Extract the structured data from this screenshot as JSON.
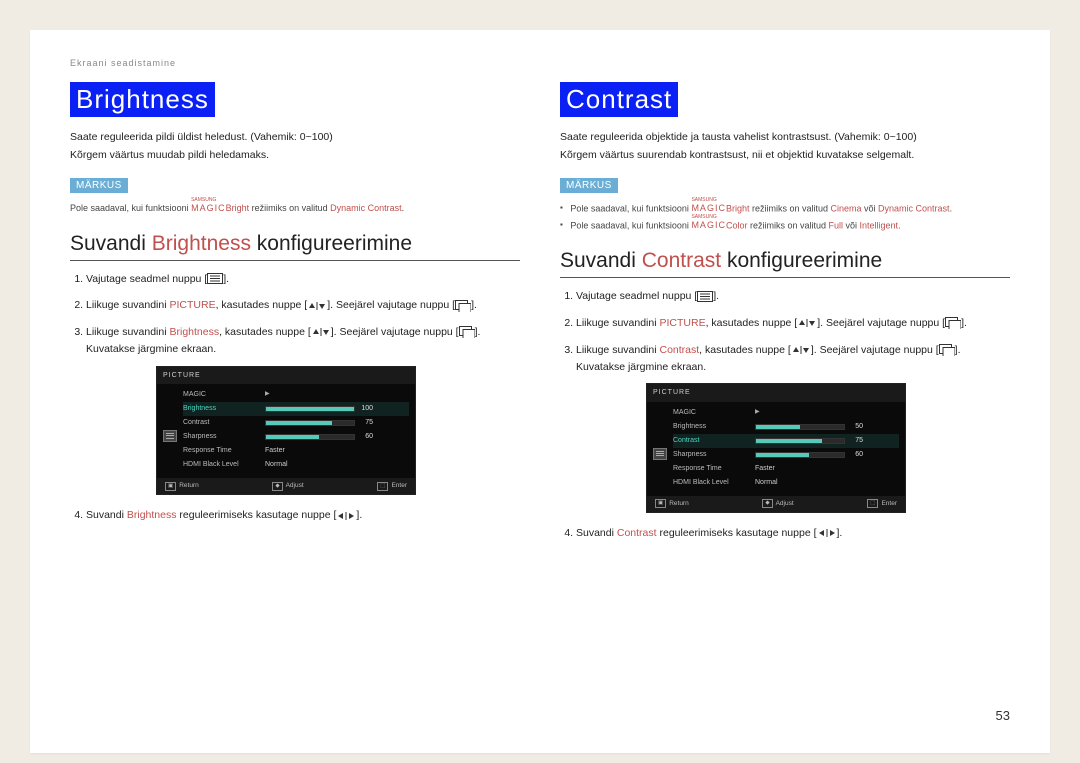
{
  "header": {
    "breadcrumb": "Ekraani seadistamine"
  },
  "page_number": "53",
  "colors": {
    "title_bg": "#0a20f5",
    "note_bg": "#6aaed6",
    "accent": "#c0504d",
    "osd_bar": "#58c9b9"
  },
  "left": {
    "title": "Brightness",
    "intro_a": "Saate reguleerida pildi üldist heledust. (Vahemik: 0~100)",
    "intro_b": "Kõrgem väärtus muudab pildi heledamaks.",
    "note_label": "MÄRKUS",
    "note_lines": [
      {
        "pre": "Pole saadaval, kui funktsiooni ",
        "magic": "MAGIC",
        "magic_sup": "SAMSUNG",
        "mid": "Bright",
        "post": " režiimiks on valitud ",
        "hi": "Dynamic Contrast",
        "tail": "."
      }
    ],
    "subhead_a": "Suvandi ",
    "subhead_hi": "Brightness",
    "subhead_b": " konfigureerimine",
    "steps": {
      "s1": "Vajutage seadmel nuppu [",
      "s1b": "].",
      "s2a": "Liikuge suvandini ",
      "s2hi": "PICTURE",
      "s2b": ", kasutades nuppe [",
      "s2c": "]. Seejärel vajutage nuppu [",
      "s2d": "].",
      "s3a": "Liikuge suvandini ",
      "s3hi": "Brightness",
      "s3b": ", kasutades nuppe [",
      "s3c": "]. Seejärel vajutage nuppu [",
      "s3d": "].",
      "s3e": "Kuvatakse järgmine ekraan.",
      "s4a": "Suvandi ",
      "s4hi": "Brightness",
      "s4b": " reguleerimiseks kasutage nuppe [",
      "s4c": "]."
    },
    "osd": {
      "title": "PICTURE",
      "selected_index": 1,
      "rows": [
        {
          "label": "MAGIC",
          "kind": "arrow"
        },
        {
          "label": "Brightness",
          "kind": "bar",
          "value": 100,
          "max": 100
        },
        {
          "label": "Contrast",
          "kind": "bar",
          "value": 75,
          "max": 100
        },
        {
          "label": "Sharpness",
          "kind": "bar",
          "value": 60,
          "max": 100
        },
        {
          "label": "Response Time",
          "kind": "text",
          "text": "Faster"
        },
        {
          "label": "HDMI Black Level",
          "kind": "text",
          "text": "Normal"
        }
      ],
      "footer": {
        "a": "Return",
        "b": "Adjust",
        "c": "Enter"
      }
    }
  },
  "right": {
    "title": "Contrast",
    "intro_a": "Saate reguleerida objektide ja tausta vahelist kontrastsust. (Vahemik: 0~100)",
    "intro_b": "Kõrgem väärtus suurendab kontrastsust, nii et objektid kuvatakse selgemalt.",
    "note_label": "MÄRKUS",
    "note_lines": [
      {
        "pre": "Pole saadaval, kui funktsiooni ",
        "magic": "MAGIC",
        "magic_sup": "SAMSUNG",
        "mid": "Bright",
        "post": " režiimiks on valitud ",
        "hi": "Cinema",
        "mid2": " või ",
        "hi2": "Dynamic Contrast",
        "tail": "."
      },
      {
        "pre": "Pole saadaval, kui funktsiooni ",
        "magic": "MAGIC",
        "magic_sup": "SAMSUNG",
        "mid": "Color",
        "post": " režiimiks on valitud ",
        "hi": "Full",
        "mid2": " või ",
        "hi2": "Intelligent",
        "tail": "."
      }
    ],
    "subhead_a": "Suvandi ",
    "subhead_hi": "Contrast",
    "subhead_b": " konfigureerimine",
    "steps": {
      "s1": "Vajutage seadmel nuppu [",
      "s1b": "].",
      "s2a": "Liikuge suvandini ",
      "s2hi": "PICTURE",
      "s2b": ", kasutades nuppe [",
      "s2c": "]. Seejärel vajutage nuppu [",
      "s2d": "].",
      "s3a": "Liikuge suvandini ",
      "s3hi": "Contrast",
      "s3b": ", kasutades nuppe [",
      "s3c": "]. Seejärel vajutage nuppu [",
      "s3d": "].",
      "s3e": "Kuvatakse järgmine ekraan.",
      "s4a": "Suvandi ",
      "s4hi": "Contrast",
      "s4b": " reguleerimiseks kasutage nuppe [",
      "s4c": "]."
    },
    "osd": {
      "title": "PICTURE",
      "selected_index": 2,
      "rows": [
        {
          "label": "MAGIC",
          "kind": "arrow"
        },
        {
          "label": "Brightness",
          "kind": "bar",
          "value": 50,
          "max": 100
        },
        {
          "label": "Contrast",
          "kind": "bar",
          "value": 75,
          "max": 100
        },
        {
          "label": "Sharpness",
          "kind": "bar",
          "value": 60,
          "max": 100
        },
        {
          "label": "Response Time",
          "kind": "text",
          "text": "Faster"
        },
        {
          "label": "HDMI Black Level",
          "kind": "text",
          "text": "Normal"
        }
      ],
      "footer": {
        "a": "Return",
        "b": "Adjust",
        "c": "Enter"
      }
    }
  }
}
